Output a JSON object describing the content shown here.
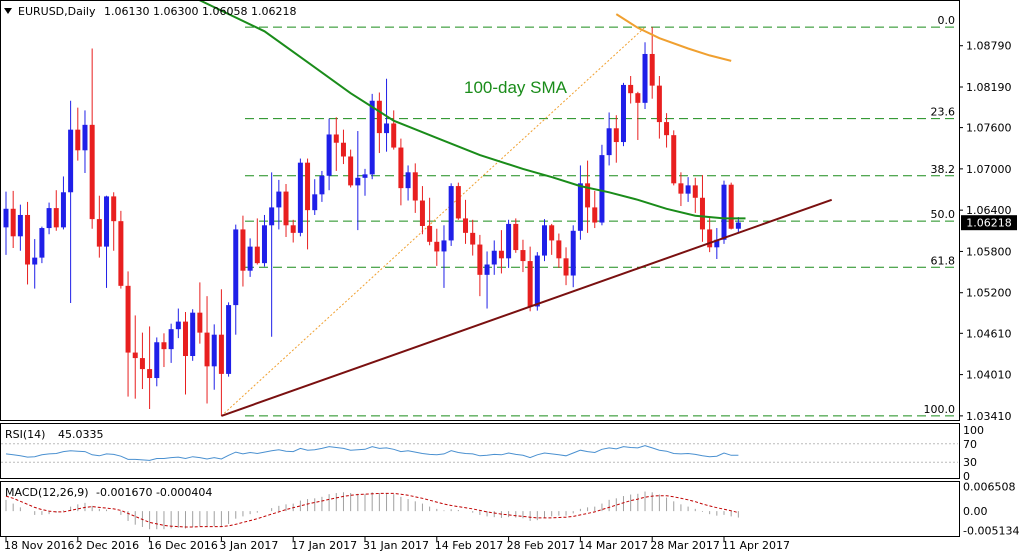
{
  "header": {
    "symbol_info": "EURUSD,Daily",
    "ohlc": "1.06130 1.06300 1.06058 1.06218"
  },
  "annotation": "100-day SMA",
  "current_price_label": "1.06218",
  "colors": {
    "bull": "#1f1fe8",
    "bear": "#e81f1f",
    "sma100": "#1a8c1a",
    "sma200": "#f0a030",
    "trendline": "#7a1010",
    "fib": "#1a8c1a",
    "fib_diag": "#f0a030",
    "grid_border": "#000000",
    "price_box": "#000000",
    "rsi": "#4a90d0",
    "macd_signal": "#c00000",
    "macd_hist": "#a0a0a0"
  },
  "chart_data": {
    "type": "candlestick",
    "title": "EURUSD,Daily",
    "ylim": [
      1.0335,
      1.0944
    ],
    "price_axis_ticks": [
      "1.08790",
      "1.08190",
      "1.07600",
      "1.07000",
      "1.06400",
      "1.05800",
      "1.05200",
      "1.04610",
      "1.04010",
      "1.03410"
    ],
    "price_axis_values": [
      1.0879,
      1.0819,
      1.076,
      1.07,
      1.064,
      1.058,
      1.052,
      1.0461,
      1.0401,
      1.0341
    ],
    "date_ticks": [
      "18 Nov 2016",
      "2 Dec 2016",
      "16 Dec 2016",
      "3 Jan 2017",
      "17 Jan 2017",
      "31 Jan 2017",
      "14 Feb 2017",
      "28 Feb 2017",
      "14 Mar 2017",
      "28 Mar 2017",
      "11 Apr 2017"
    ],
    "date_tick_bars": [
      0,
      10,
      20,
      30,
      40,
      50,
      60,
      70,
      80,
      90,
      100
    ],
    "bars_total": 103,
    "candles": [
      [
        1.0615,
        1.0667,
        1.0575,
        1.0642
      ],
      [
        1.0642,
        1.0668,
        1.0585,
        1.0602
      ],
      [
        1.0602,
        1.0648,
        1.0581,
        1.0633
      ],
      [
        1.0633,
        1.0652,
        1.0532,
        1.0561
      ],
      [
        1.0561,
        1.0598,
        1.0526,
        1.0571
      ],
      [
        1.0571,
        1.0616,
        1.0563,
        1.0614
      ],
      [
        1.0614,
        1.0651,
        1.0605,
        1.0643
      ],
      [
        1.0643,
        1.0669,
        1.061,
        1.0615
      ],
      [
        1.0615,
        1.0689,
        1.0612,
        1.0666
      ],
      [
        1.0666,
        1.0799,
        1.0505,
        1.0757
      ],
      [
        1.0757,
        1.0789,
        1.0712,
        1.0727
      ],
      [
        1.0727,
        1.0785,
        1.0694,
        1.0764
      ],
      [
        1.0764,
        1.0875,
        1.0613,
        1.0627
      ],
      [
        1.0627,
        1.0661,
        1.0571,
        1.0587
      ],
      [
        1.0587,
        1.0661,
        1.0527,
        1.066
      ],
      [
        1.066,
        1.0666,
        1.0581,
        1.0624
      ],
      [
        1.0624,
        1.0639,
        1.0526,
        1.053
      ],
      [
        1.053,
        1.0551,
        1.0369,
        1.0433
      ],
      [
        1.0433,
        1.0487,
        1.0366,
        1.0425
      ],
      [
        1.0425,
        1.0462,
        1.038,
        1.0409
      ],
      [
        1.0409,
        1.0471,
        1.0351,
        1.0396
      ],
      [
        1.0396,
        1.0455,
        1.0384,
        1.0448
      ],
      [
        1.0448,
        1.0461,
        1.0412,
        1.0438
      ],
      [
        1.0438,
        1.0475,
        1.0418,
        1.0467
      ],
      [
        1.0467,
        1.0497,
        1.0454,
        1.0478
      ],
      [
        1.0478,
        1.0492,
        1.0372,
        1.0428
      ],
      [
        1.0428,
        1.0496,
        1.0421,
        1.0491
      ],
      [
        1.0491,
        1.0535,
        1.0446,
        1.0462
      ],
      [
        1.0462,
        1.0515,
        1.0359,
        1.0413
      ],
      [
        1.0413,
        1.0474,
        1.0379,
        1.0459
      ],
      [
        1.0459,
        1.0525,
        1.0341,
        1.0402
      ],
      [
        1.0402,
        1.0506,
        1.0398,
        1.0502
      ],
      [
        1.0502,
        1.0619,
        1.0459,
        1.0612
      ],
      [
        1.0612,
        1.0632,
        1.0529,
        1.0552
      ],
      [
        1.0552,
        1.0599,
        1.0543,
        1.0587
      ],
      [
        1.0587,
        1.0628,
        1.0561,
        1.0563
      ],
      [
        1.0563,
        1.0633,
        1.0558,
        1.0618
      ],
      [
        1.0618,
        1.0695,
        1.0456,
        1.0644
      ],
      [
        1.0644,
        1.0684,
        1.0612,
        1.0667
      ],
      [
        1.0667,
        1.0678,
        1.0601,
        1.0618
      ],
      [
        1.0618,
        1.0626,
        1.0593,
        1.0607
      ],
      [
        1.0607,
        1.0715,
        1.0602,
        1.0709
      ],
      [
        1.0709,
        1.0715,
        1.0583,
        1.064
      ],
      [
        1.064,
        1.0685,
        1.0633,
        1.0663
      ],
      [
        1.0663,
        1.0697,
        1.0652,
        1.069
      ],
      [
        1.069,
        1.0773,
        1.0669,
        1.075
      ],
      [
        1.075,
        1.0775,
        1.0697,
        1.0738
      ],
      [
        1.0738,
        1.0757,
        1.0707,
        1.0718
      ],
      [
        1.0718,
        1.0728,
        1.0673,
        1.0676
      ],
      [
        1.0676,
        1.0755,
        1.0611,
        1.0687
      ],
      [
        1.0687,
        1.07,
        1.0661,
        1.0692
      ],
      [
        1.0692,
        1.0809,
        1.0685,
        1.0799
      ],
      [
        1.0799,
        1.0811,
        1.0723,
        1.0752
      ],
      [
        1.0752,
        1.0831,
        1.0725,
        1.0766
      ],
      [
        1.0766,
        1.0785,
        1.0728,
        1.0731
      ],
      [
        1.0731,
        1.0744,
        1.0647,
        1.0672
      ],
      [
        1.0672,
        1.0705,
        1.0654,
        1.0695
      ],
      [
        1.0695,
        1.0708,
        1.0636,
        1.0654
      ],
      [
        1.0654,
        1.0675,
        1.0605,
        1.0617
      ],
      [
        1.0617,
        1.0658,
        1.0589,
        1.0594
      ],
      [
        1.0594,
        1.0613,
        1.0559,
        1.058
      ],
      [
        1.058,
        1.0618,
        1.0527,
        1.0596
      ],
      [
        1.0596,
        1.0679,
        1.0588,
        1.0675
      ],
      [
        1.0675,
        1.068,
        1.0626,
        1.0628
      ],
      [
        1.0628,
        1.0655,
        1.0591,
        1.0607
      ],
      [
        1.0607,
        1.0626,
        1.0574,
        1.059
      ],
      [
        1.059,
        1.0604,
        1.0515,
        1.0546
      ],
      [
        1.0546,
        1.058,
        1.0497,
        1.0561
      ],
      [
        1.0561,
        1.0596,
        1.0546,
        1.0581
      ],
      [
        1.0581,
        1.0611,
        1.0548,
        1.057
      ],
      [
        1.057,
        1.0626,
        1.0556,
        1.062
      ],
      [
        1.062,
        1.0628,
        1.0578,
        1.0582
      ],
      [
        1.0582,
        1.0597,
        1.055,
        1.0566
      ],
      [
        1.0566,
        1.0587,
        1.0493,
        1.05
      ],
      [
        1.05,
        1.0579,
        1.0494,
        1.0574
      ],
      [
        1.0574,
        1.0627,
        1.0566,
        1.0618
      ],
      [
        1.0618,
        1.062,
        1.0575,
        1.0596
      ],
      [
        1.0596,
        1.0606,
        1.0556,
        1.057
      ],
      [
        1.057,
        1.0586,
        1.0531,
        1.0545
      ],
      [
        1.0545,
        1.0618,
        1.0528,
        1.061
      ],
      [
        1.061,
        1.0705,
        1.0597,
        1.0679
      ],
      [
        1.0679,
        1.0712,
        1.0607,
        1.0644
      ],
      [
        1.0644,
        1.0668,
        1.0614,
        1.0622
      ],
      [
        1.0622,
        1.0735,
        1.0618,
        1.072
      ],
      [
        1.072,
        1.0782,
        1.0705,
        1.0759
      ],
      [
        1.0759,
        1.0778,
        1.0709,
        1.0739
      ],
      [
        1.0739,
        1.0825,
        1.0733,
        1.0822
      ],
      [
        1.0822,
        1.0835,
        1.0795,
        1.081
      ],
      [
        1.081,
        1.0812,
        1.0742,
        1.0796
      ],
      [
        1.0796,
        1.0884,
        1.0787,
        1.0867
      ],
      [
        1.0867,
        1.0906,
        1.0802,
        1.0821
      ],
      [
        1.0821,
        1.0835,
        1.0744,
        1.0768
      ],
      [
        1.0768,
        1.0781,
        1.0731,
        1.0749
      ],
      [
        1.0749,
        1.0756,
        1.0676,
        1.0679
      ],
      [
        1.0679,
        1.0695,
        1.0646,
        1.0664
      ],
      [
        1.0664,
        1.0688,
        1.0652,
        1.0676
      ],
      [
        1.0676,
        1.0687,
        1.0636,
        1.0658
      ],
      [
        1.0658,
        1.0691,
        1.0594,
        1.0612
      ],
      [
        1.0612,
        1.0629,
        1.0579,
        1.0586
      ],
      [
        1.0586,
        1.0614,
        1.0569,
        1.0597
      ],
      [
        1.0597,
        1.0683,
        1.0591,
        1.0677
      ],
      [
        1.0677,
        1.068,
        1.0612,
        1.0613
      ],
      [
        1.0613,
        1.063,
        1.0606,
        1.0622
      ]
    ],
    "sma100": [
      [
        24,
        1.096
      ],
      [
        30,
        1.093
      ],
      [
        36,
        1.09
      ],
      [
        42,
        1.0855
      ],
      [
        48,
        1.081
      ],
      [
        54,
        1.077
      ],
      [
        60,
        1.0745
      ],
      [
        66,
        1.072
      ],
      [
        72,
        1.07
      ],
      [
        76,
        1.0688
      ],
      [
        80,
        1.0675
      ],
      [
        84,
        1.0666
      ],
      [
        88,
        1.0655
      ],
      [
        92,
        1.0642
      ],
      [
        96,
        1.0632
      ],
      [
        100,
        1.0628
      ],
      [
        103,
        1.0628
      ]
    ],
    "sma200": [
      [
        85,
        1.0925
      ],
      [
        88,
        1.0905
      ],
      [
        91,
        1.089
      ],
      [
        95,
        1.0875
      ],
      [
        98,
        1.0865
      ],
      [
        101,
        1.0857
      ]
    ],
    "trendline": [
      [
        30,
        1.0341
      ],
      [
        115,
        1.0655
      ]
    ],
    "fib_diagonal": [
      [
        30,
        1.0341
      ],
      [
        89,
        1.0906
      ]
    ],
    "fib_levels": [
      {
        "label": "0.0",
        "value": 1.0906
      },
      {
        "label": "23.6",
        "value": 1.0773
      },
      {
        "label": "38.2",
        "value": 1.069
      },
      {
        "label": "50.0",
        "value": 1.0624
      },
      {
        "label": "61.8",
        "value": 1.0557
      },
      {
        "label": "100.0",
        "value": 1.0341
      }
    ],
    "rsi": {
      "label": "RSI(14)",
      "value": "45.0335",
      "ticks": [
        "100",
        "70",
        "30",
        "0"
      ],
      "tick_values": [
        100,
        70,
        30,
        0
      ],
      "ylim": [
        0,
        100
      ],
      "values": [
        48,
        46,
        44,
        41,
        42,
        46,
        48,
        49,
        53,
        55,
        54,
        53,
        46,
        44,
        48,
        47,
        43,
        36,
        36,
        35,
        34,
        38,
        38,
        40,
        41,
        38,
        42,
        40,
        37,
        40,
        37,
        45,
        52,
        48,
        51,
        49,
        52,
        55,
        57,
        54,
        53,
        60,
        56,
        57,
        60,
        64,
        62,
        60,
        56,
        57,
        58,
        64,
        60,
        61,
        58,
        53,
        55,
        52,
        49,
        47,
        46,
        48,
        55,
        51,
        49,
        48,
        44,
        45,
        47,
        46,
        50,
        47,
        45,
        40,
        46,
        50,
        48,
        46,
        44,
        50,
        56,
        53,
        51,
        58,
        61,
        59,
        64,
        62,
        61,
        66,
        61,
        56,
        54,
        49,
        48,
        49,
        47,
        44,
        42,
        43,
        50,
        45,
        45
      ]
    },
    "macd": {
      "label": "MACD(12,26,9)",
      "values_label": "-0.001670 -0.000404",
      "ticks": [
        "0.006508",
        "0.00",
        "-0.005134"
      ],
      "tick_values": [
        0.006508,
        0.0,
        -0.005134
      ],
      "ylim": [
        -0.0066,
        0.0072
      ],
      "hist": [
        0.003,
        0.002,
        0.001,
        0.0,
        -0.001,
        -0.001,
        -0.0008,
        -0.0004,
        0.0002,
        0.0012,
        0.0018,
        0.0022,
        0.0014,
        0.0006,
        0.0004,
        0.0,
        -0.001,
        -0.0026,
        -0.0036,
        -0.0042,
        -0.0048,
        -0.0048,
        -0.0048,
        -0.0046,
        -0.0044,
        -0.0046,
        -0.0042,
        -0.004,
        -0.0042,
        -0.004,
        -0.0042,
        -0.0034,
        -0.002,
        -0.0014,
        -0.0008,
        -0.0004,
        0.0,
        0.0008,
        0.0014,
        0.0018,
        0.002,
        0.0028,
        0.0032,
        0.0034,
        0.0038,
        0.0045,
        0.0048,
        0.005,
        0.0048,
        0.0046,
        0.0045,
        0.005,
        0.0048,
        0.0048,
        0.0045,
        0.0038,
        0.0032,
        0.0026,
        0.002,
        0.0012,
        0.0006,
        0.0002,
        0.0005,
        0.0003,
        0.0,
        -0.0004,
        -0.001,
        -0.0014,
        -0.0016,
        -0.0018,
        -0.0016,
        -0.0017,
        -0.0019,
        -0.0026,
        -0.0024,
        -0.0018,
        -0.0014,
        -0.0012,
        -0.0012,
        -0.0006,
        0.0006,
        0.001,
        0.0012,
        0.002,
        0.003,
        0.0034,
        0.004,
        0.0044,
        0.0046,
        0.0052,
        0.005,
        0.0044,
        0.0036,
        0.0026,
        0.0018,
        0.0012,
        0.0006,
        -0.0002,
        -0.0008,
        -0.0012,
        -0.001,
        -0.0014,
        -0.0017
      ],
      "signal": [
        0.004,
        0.0034,
        0.0026,
        0.0018,
        0.001,
        0.0004,
        0.0,
        -0.0002,
        -0.0002,
        0.0002,
        0.0006,
        0.001,
        0.0012,
        0.001,
        0.0008,
        0.0006,
        0.0002,
        -0.0006,
        -0.0014,
        -0.0022,
        -0.003,
        -0.0034,
        -0.0038,
        -0.004,
        -0.0041,
        -0.0042,
        -0.0042,
        -0.0041,
        -0.0041,
        -0.0041,
        -0.0041,
        -0.0039,
        -0.0035,
        -0.003,
        -0.0025,
        -0.002,
        -0.0014,
        -0.0008,
        -0.0002,
        0.0004,
        0.0009,
        0.0014,
        0.0019,
        0.0023,
        0.0027,
        0.0031,
        0.0035,
        0.0039,
        0.0042,
        0.0044,
        0.0045,
        0.0046,
        0.0047,
        0.0047,
        0.0047,
        0.0045,
        0.0042,
        0.0038,
        0.0034,
        0.0029,
        0.0024,
        0.0019,
        0.0015,
        0.0012,
        0.0009,
        0.0006,
        0.0002,
        -0.0002,
        -0.0005,
        -0.0008,
        -0.001,
        -0.0012,
        -0.0014,
        -0.0016,
        -0.0018,
        -0.0018,
        -0.0018,
        -0.0017,
        -0.0016,
        -0.0014,
        -0.001,
        -0.0006,
        -0.0002,
        0.0004,
        0.001,
        0.0016,
        0.0022,
        0.0028,
        0.0032,
        0.0037,
        0.004,
        0.0041,
        0.0041,
        0.0038,
        0.0034,
        0.003,
        0.0025,
        0.0019,
        0.0014,
        0.0009,
        0.0005,
        0.0001,
        -0.0004
      ]
    }
  }
}
